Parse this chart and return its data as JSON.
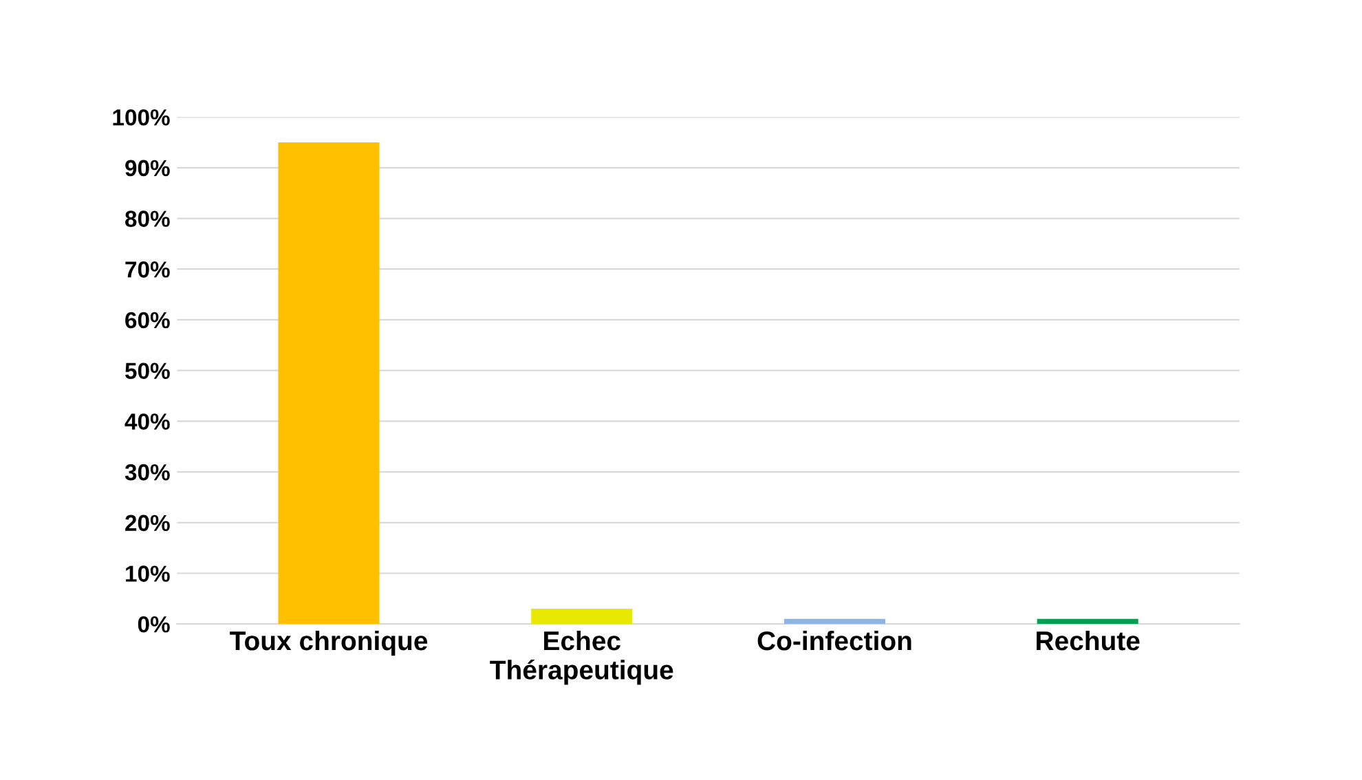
{
  "chart_data": {
    "type": "bar",
    "categories": [
      "Toux chronique",
      "Echec\nThérapeutique",
      "Co-infection",
      "Rechute"
    ],
    "values": [
      95,
      3,
      1,
      1
    ],
    "colors": [
      "#ffc000",
      "#e8e800",
      "#8eb4e3",
      "#00a050"
    ],
    "ylim": [
      0,
      100
    ],
    "yticks": [
      {
        "value": 0,
        "label": "0%"
      },
      {
        "value": 10,
        "label": "10%"
      },
      {
        "value": 20,
        "label": "20%"
      },
      {
        "value": 30,
        "label": "30%"
      },
      {
        "value": 40,
        "label": "40%"
      },
      {
        "value": 50,
        "label": "50%"
      },
      {
        "value": 60,
        "label": "60%"
      },
      {
        "value": 70,
        "label": "70%"
      },
      {
        "value": 80,
        "label": "80%"
      },
      {
        "value": 90,
        "label": "90%"
      },
      {
        "value": 100,
        "label": "100%"
      }
    ],
    "grid": "y"
  }
}
